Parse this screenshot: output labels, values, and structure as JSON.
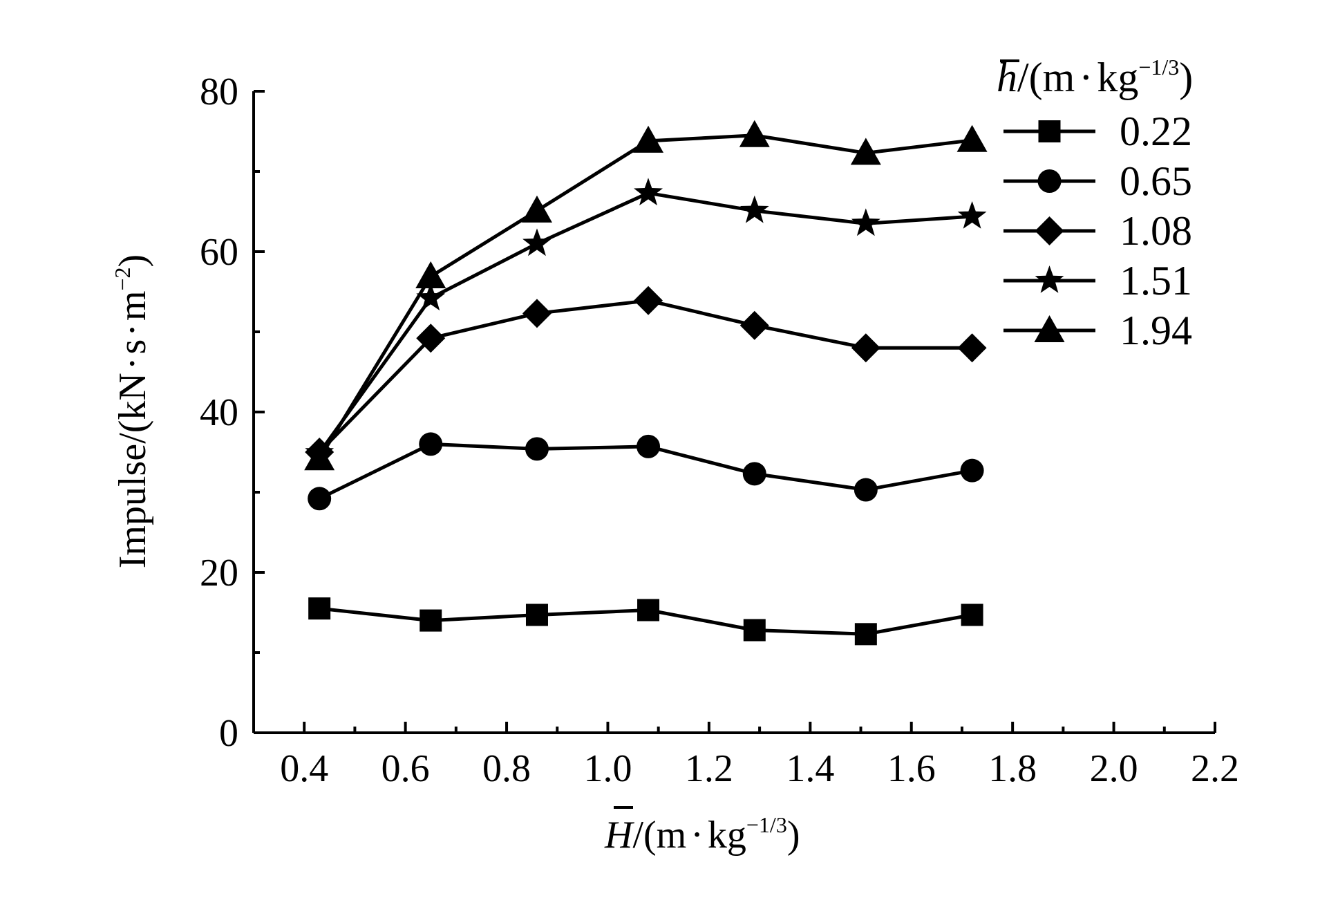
{
  "chart_data": {
    "type": "line",
    "xlabel": {
      "symbol": "H",
      "unit_main": "/(m",
      "unit_dot": "·",
      "unit_kg": "kg",
      "unit_exp": "−1/3",
      "unit_close": ")"
    },
    "ylabel": {
      "main": "Impulse/(kN",
      "dot1": "·",
      "s": "s",
      "dot2": "·",
      "m": "m",
      "exp": "−2",
      "close": ")"
    },
    "legend_title": {
      "symbol": "h",
      "unit_main": "/(m",
      "unit_dot": "·",
      "unit_kg": "kg",
      "unit_exp": "−1/3",
      "unit_close": ")"
    },
    "xlim": [
      0.3,
      2.2
    ],
    "ylim": [
      0,
      80
    ],
    "x_ticks": [
      "0.4",
      "0.6",
      "0.8",
      "1.0",
      "1.2",
      "1.4",
      "1.6",
      "1.8",
      "2.0",
      "2.2"
    ],
    "y_ticks": [
      "0",
      "20",
      "40",
      "60",
      "80"
    ],
    "grid": false,
    "legend_position": "top-right",
    "line_color": "#000000",
    "x": [
      0.43,
      0.65,
      0.86,
      1.08,
      1.29,
      1.51,
      1.72
    ],
    "series": [
      {
        "name": "0.22",
        "marker": "square",
        "values": [
          15.5,
          14.0,
          14.7,
          15.3,
          12.8,
          12.3,
          14.7
        ]
      },
      {
        "name": "0.65",
        "marker": "circle",
        "values": [
          29.2,
          36.0,
          35.4,
          35.7,
          32.3,
          30.3,
          32.7
        ]
      },
      {
        "name": "1.08",
        "marker": "diamond",
        "values": [
          35.0,
          49.2,
          52.3,
          53.9,
          50.8,
          48.0,
          48.0
        ]
      },
      {
        "name": "1.51",
        "marker": "star",
        "values": [
          34.9,
          54.2,
          61.0,
          67.3,
          65.1,
          63.5,
          64.4
        ]
      },
      {
        "name": "1.94",
        "marker": "triangle",
        "values": [
          34.2,
          56.9,
          65.1,
          73.8,
          74.5,
          72.3,
          73.9
        ]
      }
    ]
  }
}
